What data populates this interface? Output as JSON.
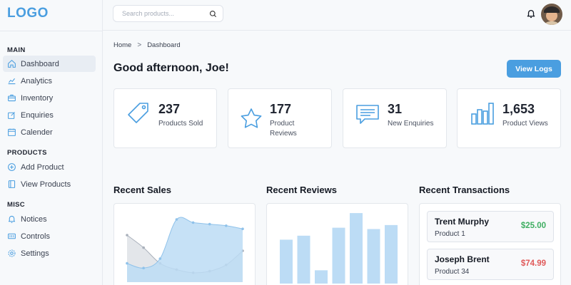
{
  "logo": "LOGO",
  "search": {
    "placeholder": "Search products..."
  },
  "sidebar": {
    "sections": [
      {
        "title": "MAIN",
        "items": [
          {
            "label": "Dashboard",
            "icon": "home-icon",
            "active": true
          },
          {
            "label": "Analytics",
            "icon": "chart-icon"
          },
          {
            "label": "Inventory",
            "icon": "briefcase-icon"
          },
          {
            "label": "Enquiries",
            "icon": "edit-icon"
          },
          {
            "label": "Calender",
            "icon": "calendar-icon"
          }
        ]
      },
      {
        "title": "PRODUCTS",
        "items": [
          {
            "label": "Add Product",
            "icon": "plus-circle-icon"
          },
          {
            "label": "View Products",
            "icon": "document-icon"
          }
        ]
      },
      {
        "title": "MISC",
        "items": [
          {
            "label": "Notices",
            "icon": "bell-icon"
          },
          {
            "label": "Controls",
            "icon": "sliders-icon"
          },
          {
            "label": "Settings",
            "icon": "gear-icon"
          }
        ]
      }
    ]
  },
  "breadcrumb": {
    "home": "Home",
    "separator": ">",
    "current": "Dashboard"
  },
  "greeting": "Good afternoon, Joe!",
  "actions": {
    "view_logs": "View Logs"
  },
  "stats": [
    {
      "value": "237",
      "label": "Products Sold",
      "icon": "tag-icon"
    },
    {
      "value": "177",
      "label": "Product Reviews",
      "icon": "star-icon"
    },
    {
      "value": "31",
      "label": "New Enquiries",
      "icon": "message-icon"
    },
    {
      "value": "1,653",
      "label": "Product Views",
      "icon": "bar-chart-icon"
    }
  ],
  "sections": {
    "sales": "Recent Sales",
    "reviews": "Recent Reviews",
    "transactions": "Recent Transactions"
  },
  "transactions": [
    {
      "name": "Trent Murphy",
      "product": "Product 1",
      "amount": "$25.00",
      "direction": "in"
    },
    {
      "name": "Joseph Brent",
      "product": "Product 34",
      "amount": "$74.99",
      "direction": "out"
    }
  ],
  "colors": {
    "accent": "#4a9ee0",
    "chart_fill": "#bcdcf5",
    "chart_fill_2": "#d9dde3",
    "positive": "#3fae62",
    "negative": "#e05a5a"
  },
  "chart_data": [
    {
      "type": "area",
      "x": [
        1,
        2,
        3,
        4,
        5,
        6,
        7,
        8
      ],
      "series": [
        {
          "values": [
            12,
            9,
            15,
            40,
            38,
            37,
            36,
            34
          ]
        },
        {
          "values": [
            30,
            22,
            12,
            8,
            6,
            7,
            11,
            20
          ]
        }
      ],
      "ylim": [
        0,
        50
      ],
      "grid": false
    },
    {
      "type": "bar",
      "categories": [
        "1",
        "2",
        "3",
        "4",
        "5",
        "6",
        "7"
      ],
      "values": [
        33,
        36,
        10,
        42,
        53,
        41,
        44
      ],
      "ylim": [
        0,
        60
      ],
      "grid": false
    }
  ]
}
